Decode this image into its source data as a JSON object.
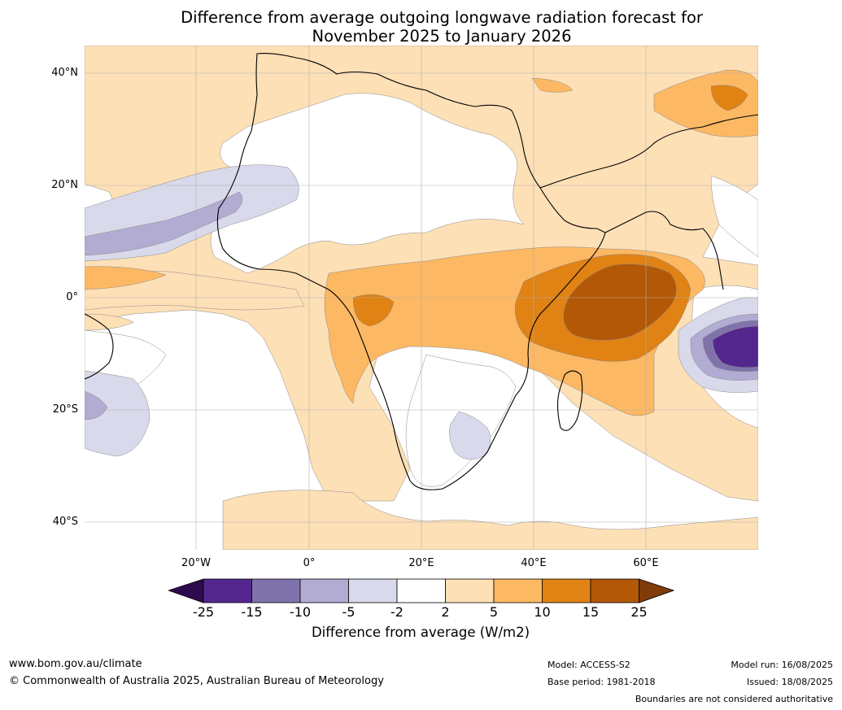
{
  "header": {
    "title_line1": "Difference from average outgoing longwave radiation forecast for",
    "title_line2": "November 2025 to January 2026"
  },
  "axes": {
    "lat_labels": [
      "40°N",
      "20°N",
      "0°",
      "20°S",
      "40°S"
    ],
    "lon_labels": [
      "20°W",
      "0°",
      "20°E",
      "40°E",
      "60°E"
    ]
  },
  "legend": {
    "ticks": [
      "-25",
      "-15",
      "-10",
      "-5",
      "-2",
      "2",
      "5",
      "10",
      "15",
      "25"
    ],
    "label": "Difference from average (W/m2)",
    "colors": {
      "below_-25": "#2d0a4e",
      "-25_-15": "#54278f",
      "-15_-10": "#8073ac",
      "-10_-5": "#b2abd2",
      "-5_-2": "#d8daeb",
      "-2_2": "#ffffff",
      "2_5": "#fee0b6",
      "5_10": "#fdb863",
      "10_15": "#e08214",
      "15_25": "#b35806",
      "above_25": "#7f3b08"
    }
  },
  "footer": {
    "website": "www.bom.gov.au/climate",
    "copyright": "© Commonwealth of Australia 2025, Australian Bureau of Meteorology",
    "model": "Model: ACCESS-S2",
    "base_period": "Base period: 1981-2018",
    "model_run": "Model run: 16/08/2025",
    "issued": "Issued: 18/08/2025",
    "disclaimer": "Boundaries are not considered authoritative"
  }
}
